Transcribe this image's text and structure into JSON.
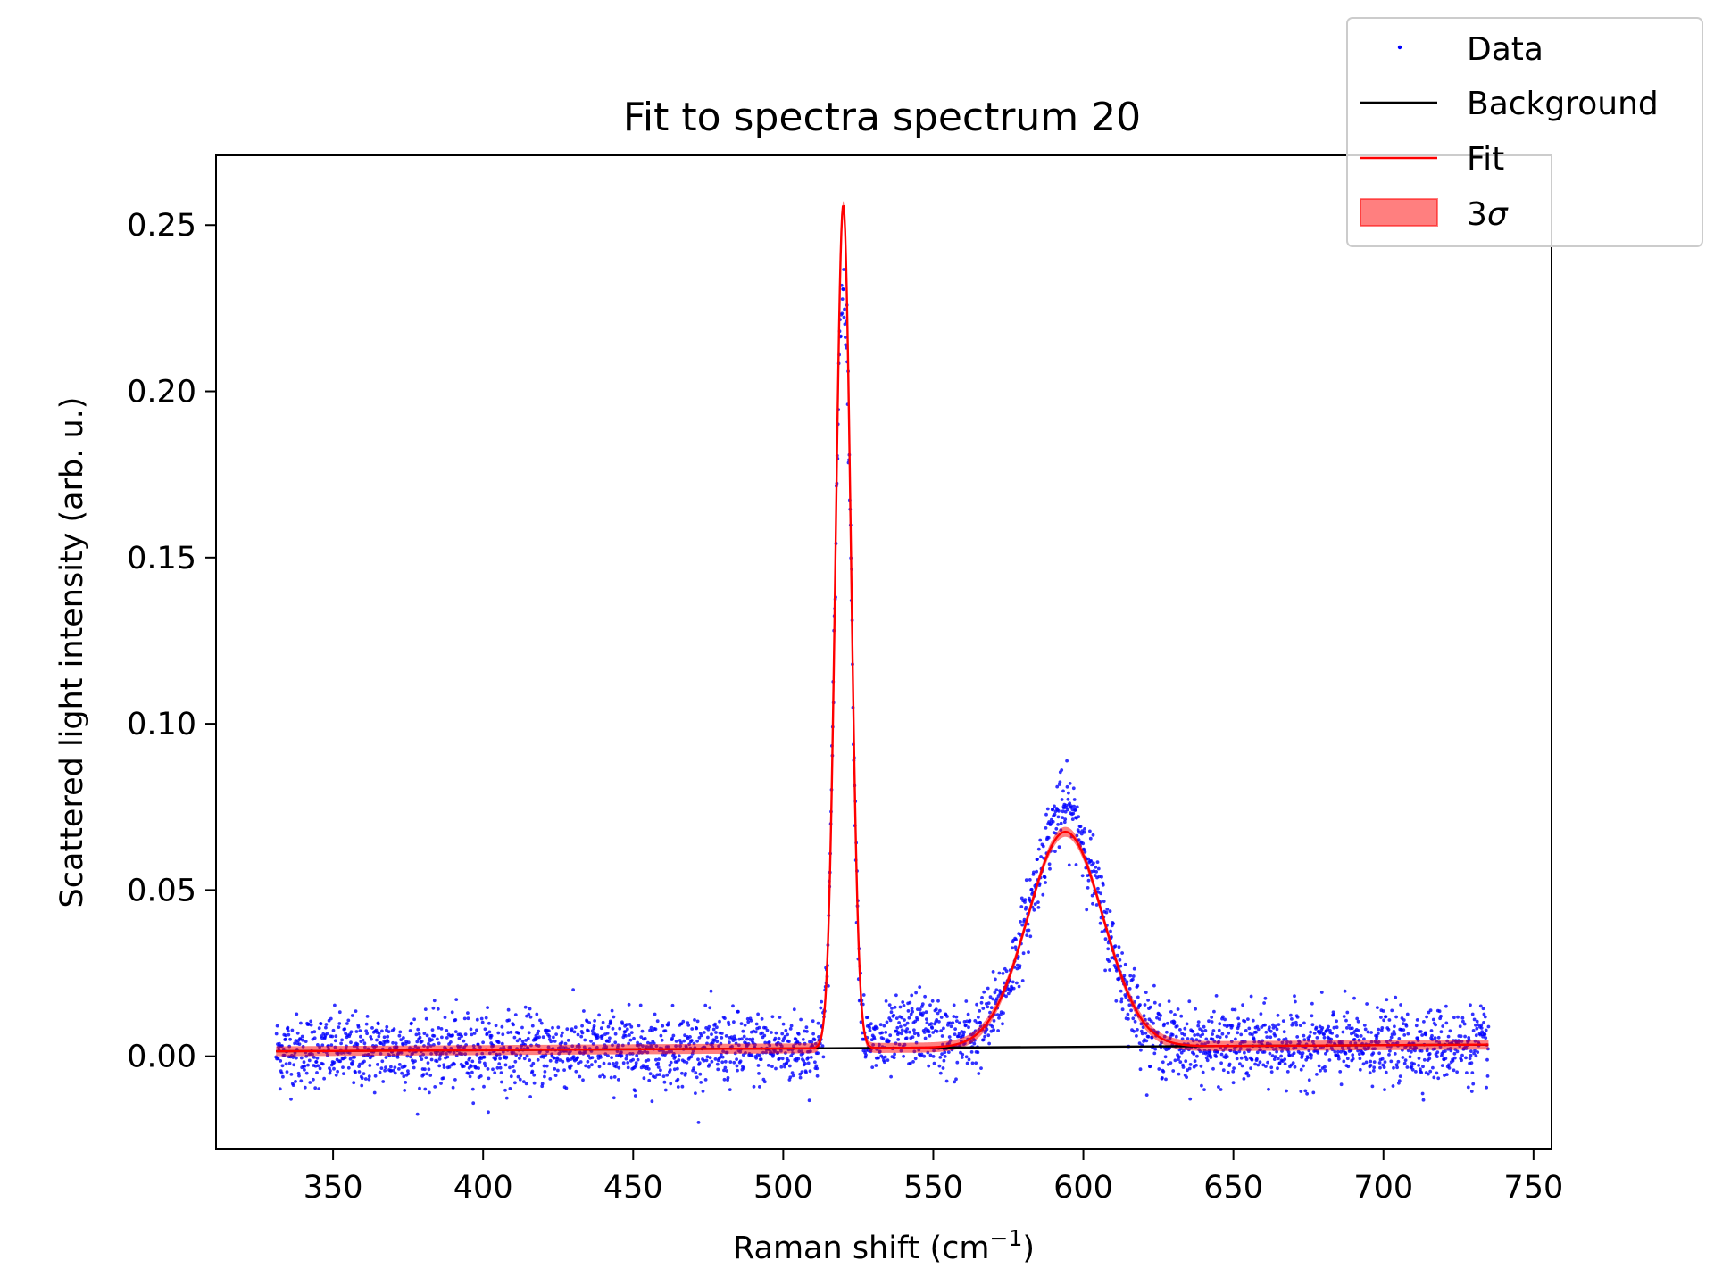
{
  "chart_data": {
    "type": "scatter",
    "title": "Fit to spectra spectrum 20",
    "xlabel": "Raman shift (cm",
    "xlabel_sup": "−1",
    "xlabel_end": ")",
    "ylabel": "Scattered light intensity (arb. u.)",
    "xlim": [
      311,
      756
    ],
    "ylim": [
      -0.028,
      0.271
    ],
    "x_ticks": [
      350,
      400,
      450,
      500,
      550,
      600,
      650,
      700,
      750
    ],
    "x_tick_labels": [
      "350",
      "400",
      "450",
      "500",
      "550",
      "600",
      "650",
      "700",
      "750"
    ],
    "y_ticks": [
      0.0,
      0.05,
      0.1,
      0.15,
      0.2,
      0.25
    ],
    "y_tick_labels": [
      "0.00",
      "0.05",
      "0.10",
      "0.15",
      "0.20",
      "0.25"
    ],
    "grid": false,
    "legend_position": "top-right (outside plot)",
    "x_range": [
      331,
      735
    ],
    "background": {
      "x": [
        331,
        735
      ],
      "y": [
        0.0015,
        0.0035
      ]
    },
    "peaks": [
      {
        "center": 520,
        "amplitude": 0.2535,
        "sigma": 2.5,
        "kind": "gaussian"
      },
      {
        "center": 594,
        "amplitude": 0.0647,
        "sigma": 12.5,
        "kind": "gaussian"
      }
    ],
    "uncertainty_3sigma": 0.0015,
    "data_noise_sd": 0.0055,
    "data_points": 3000,
    "series": [
      {
        "name": "Data",
        "style": "points",
        "color": "#0000ff"
      },
      {
        "name": "Background",
        "style": "line",
        "color": "#000000"
      },
      {
        "name": "Fit",
        "style": "line",
        "color": "#ff0000"
      },
      {
        "name": "3σ",
        "style": "band",
        "color": "#ff0000"
      }
    ]
  },
  "legend": {
    "data_label": "Data",
    "background_label": "Background",
    "fit_label": "Fit",
    "band_label_num": "3",
    "band_label_sym": "σ"
  }
}
